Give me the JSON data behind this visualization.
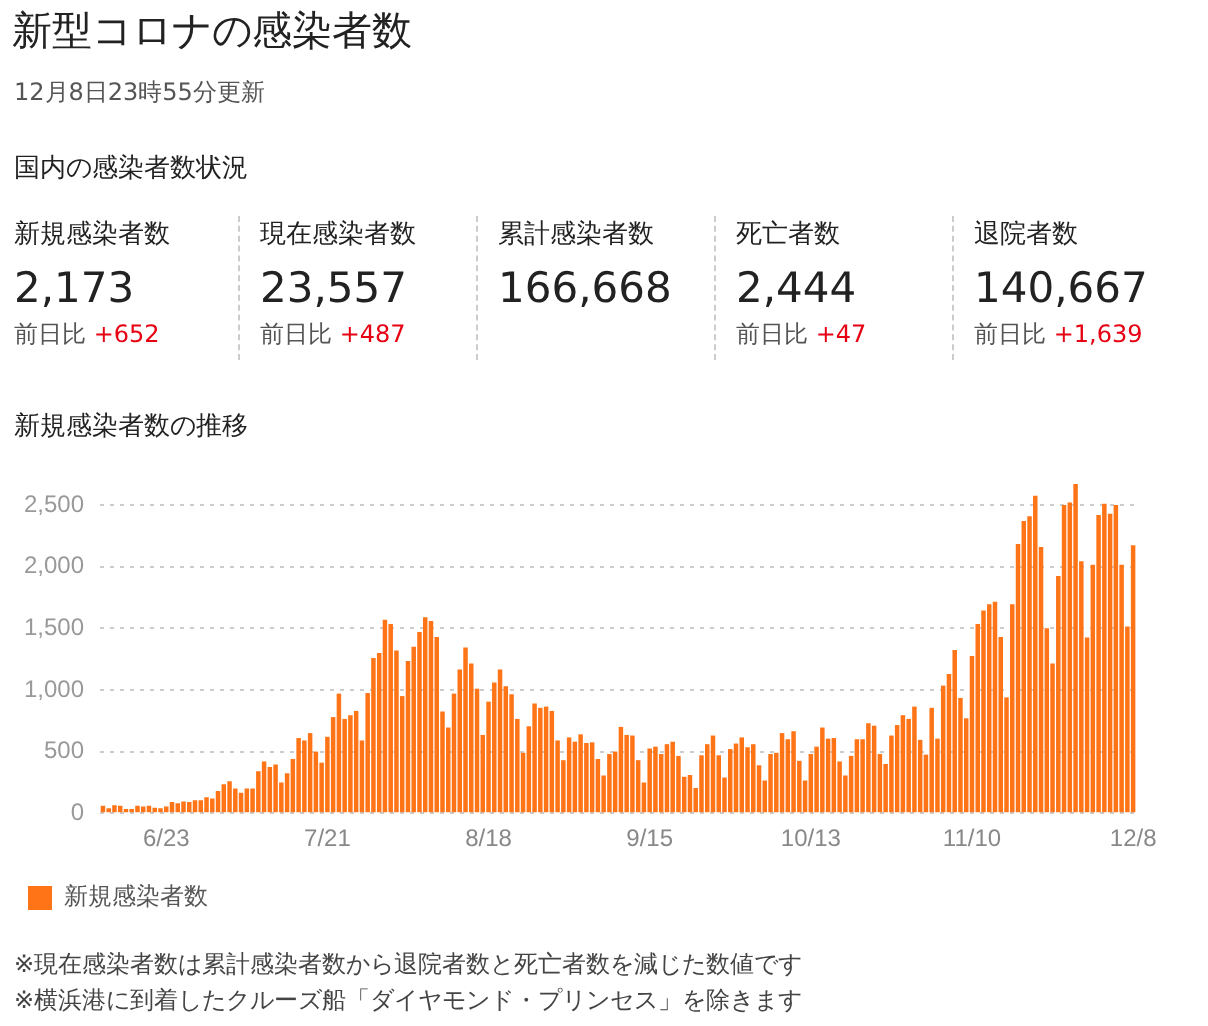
{
  "chart_data": [
    {
      "type": "other",
      "title": "新型コロナの感染者数",
      "subtitle": "12月8日23時55分更新",
      "annotations": [
        "国内の感染者数状況"
      ],
      "categories": [
        "新規感染者数",
        "現在感染者数",
        "累計感染者数",
        "死亡者数",
        "退院者数"
      ],
      "series": [
        {
          "values": [
            2173,
            23557,
            166668,
            2444,
            140667
          ],
          "value_labels": [
            "2,173",
            "23,557",
            "166,668",
            "2,444",
            "140,667"
          ]
        },
        {
          "name": "前日比",
          "values": [
            652,
            487,
            null,
            47,
            1639
          ],
          "value_labels": [
            "+652",
            "+487",
            null,
            "+47",
            "+1,639"
          ]
        }
      ]
    },
    {
      "type": "bar",
      "title": "新規感染者数の推移",
      "categories": [
        null,
        null,
        null,
        null,
        null,
        null,
        null,
        null,
        null,
        null,
        null,
        "6/23",
        null,
        null,
        null,
        null,
        null,
        null,
        null,
        null,
        null,
        null,
        null,
        null,
        null,
        null,
        null,
        null,
        null,
        null,
        null,
        null,
        null,
        null,
        null,
        null,
        null,
        null,
        null,
        "7/21",
        null,
        null,
        null,
        null,
        null,
        null,
        null,
        null,
        null,
        null,
        null,
        null,
        null,
        null,
        null,
        null,
        null,
        null,
        null,
        null,
        null,
        null,
        null,
        null,
        null,
        null,
        null,
        "8/18",
        null,
        null,
        null,
        null,
        null,
        null,
        null,
        null,
        null,
        null,
        null,
        null,
        null,
        null,
        null,
        null,
        null,
        null,
        null,
        null,
        null,
        null,
        null,
        null,
        null,
        null,
        null,
        "9/15",
        null,
        null,
        null,
        null,
        null,
        null,
        null,
        null,
        null,
        null,
        null,
        null,
        null,
        null,
        null,
        null,
        null,
        null,
        null,
        null,
        null,
        null,
        null,
        null,
        null,
        null,
        null,
        "10/13",
        null,
        null,
        null,
        null,
        null,
        null,
        null,
        null,
        null,
        null,
        null,
        null,
        null,
        null,
        null,
        null,
        null,
        null,
        null,
        null,
        null,
        null,
        null,
        null,
        null,
        null,
        null,
        "11/10",
        null,
        null,
        null,
        null,
        null,
        null,
        null,
        null,
        null,
        null,
        null,
        null,
        null,
        null,
        null,
        null,
        null,
        null,
        null,
        null,
        null,
        null,
        null,
        null,
        null,
        null,
        null,
        "12/8"
      ],
      "series": [
        {
          "name": "新規感染者数",
          "color": "#ff7417",
          "values": [
            60,
            40,
            65,
            60,
            35,
            35,
            60,
            55,
            60,
            45,
            40,
            55,
            90,
            80,
            95,
            90,
            105,
            105,
            130,
            120,
            180,
            235,
            260,
            200,
            165,
            200,
            200,
            340,
            420,
            375,
            395,
            250,
            325,
            440,
            610,
            590,
            650,
            500,
            410,
            620,
            780,
            970,
            765,
            795,
            830,
            590,
            975,
            1260,
            1300,
            1570,
            1535,
            1320,
            950,
            1235,
            1350,
            1470,
            1590,
            1560,
            1430,
            825,
            695,
            970,
            1165,
            1345,
            1215,
            1010,
            635,
            905,
            1060,
            1165,
            1030,
            965,
            765,
            490,
            705,
            890,
            855,
            865,
            830,
            590,
            430,
            615,
            580,
            640,
            570,
            575,
            440,
            305,
            480,
            500,
            700,
            635,
            630,
            430,
            250,
            525,
            540,
            480,
            560,
            580,
            465,
            295,
            310,
            205,
            470,
            560,
            630,
            470,
            290,
            520,
            565,
            615,
            535,
            560,
            390,
            265,
            480,
            490,
            650,
            600,
            665,
            425,
            265,
            480,
            540,
            695,
            605,
            610,
            420,
            305,
            465,
            600,
            600,
            730,
            710,
            480,
            400,
            630,
            715,
            795,
            765,
            865,
            595,
            475,
            855,
            605,
            1035,
            1130,
            1325,
            935,
            770,
            1275,
            1535,
            1645,
            1695,
            1715,
            1430,
            940,
            1695,
            2185,
            2370,
            2410,
            2575,
            2160,
            1500,
            1215,
            1925,
            2500,
            2520,
            2670,
            2045,
            1425,
            2015,
            2420,
            2510,
            2430,
            2500,
            2015,
            1515,
            2173
          ]
        }
      ],
      "ylim": [
        0,
        2700
      ],
      "yticks": [
        0,
        500,
        {
          "value": 1000,
          "label": "1,000"
        },
        {
          "value": 1500,
          "label": "1,500"
        },
        {
          "value": 2000,
          "label": "2,000"
        },
        {
          "value": 2500,
          "label": "2,500"
        }
      ],
      "grid": "y",
      "legend": "bottom left",
      "annotations": [
        "※現在感染者数は累計感染者数から退院者数と死亡者数を減じた数値です",
        "※横浜港に到着したクルーズ船「ダイヤモンド・プリンセス」を除きます"
      ]
    }
  ]
}
